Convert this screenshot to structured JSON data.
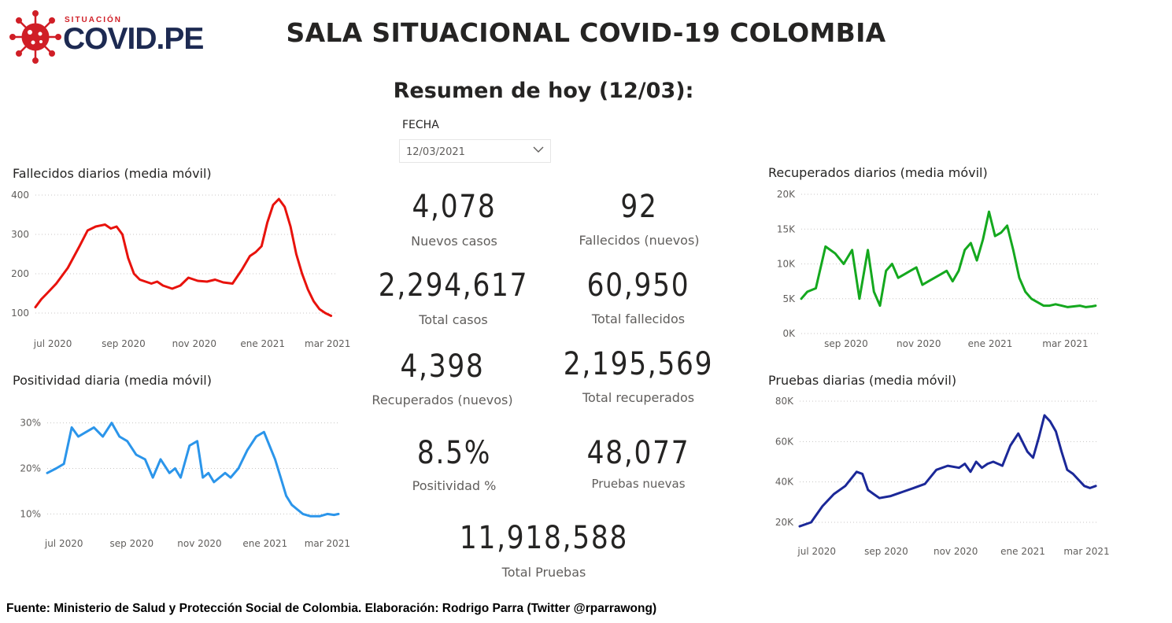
{
  "header": {
    "logo_small": "SITUACIÓN",
    "logo_big": "COVID.PE",
    "title": "SALA SITUACIONAL COVID-19 COLOMBIA",
    "subtitle": "Resumen de hoy (12/03):"
  },
  "filter": {
    "label": "FECHA",
    "value": "12/03/2021"
  },
  "kpis": {
    "nuevos_casos": {
      "value": "4,078",
      "label": "Nuevos casos"
    },
    "fallecidos_nuevos": {
      "value": "92",
      "label": "Fallecidos (nuevos)"
    },
    "total_casos": {
      "value": "2,294,617",
      "label": "Total casos"
    },
    "total_fallecidos": {
      "value": "60,950",
      "label": "Total fallecidos"
    },
    "recuperados_nuevos": {
      "value": "4,398",
      "label": "Recuperados (nuevos)"
    },
    "total_recuperados": {
      "value": "2,195,569",
      "label": "Total recuperados"
    },
    "positividad": {
      "value": "8.5%",
      "label": "Positividad %"
    },
    "pruebas_nuevas": {
      "value": "48,077",
      "label": "Pruebas nuevas"
    },
    "total_pruebas": {
      "value": "11,918,588",
      "label": "Total Pruebas"
    }
  },
  "footer": "Fuente: Ministerio de Salud y Protección Social de Colombia. Elaboración: Rodrigo Parra (Twitter @rparrawong)",
  "colors": {
    "red": "#e8120c",
    "blue": "#2b95ea",
    "green": "#14a81e",
    "navy": "#1b2898",
    "logo_red": "#d01e26",
    "logo_navy": "#1d2a52"
  },
  "chart_data": [
    {
      "id": "fallecidos",
      "type": "line",
      "title": "Fallecidos diarios (media móvil)",
      "color": "#e8120c",
      "ylim": [
        100,
        400
      ],
      "yticks": [
        100,
        200,
        300,
        400
      ],
      "ytick_labels": [
        "100",
        "200",
        "300",
        "400"
      ],
      "xlim": [
        0,
        260
      ],
      "xticks": [
        15,
        76,
        137,
        196,
        252
      ],
      "xtick_labels": [
        "jul 2020",
        "sep 2020",
        "nov 2020",
        "ene 2021",
        "mar 2021"
      ],
      "x": [
        0,
        5,
        10,
        18,
        28,
        38,
        45,
        52,
        60,
        65,
        70,
        75,
        80,
        85,
        90,
        95,
        100,
        105,
        110,
        118,
        125,
        132,
        140,
        148,
        155,
        162,
        170,
        178,
        185,
        190,
        195,
        200,
        205,
        210,
        215,
        220,
        225,
        230,
        235,
        240,
        245,
        250,
        255
      ],
      "y": [
        115,
        135,
        150,
        175,
        215,
        270,
        310,
        320,
        325,
        315,
        320,
        300,
        240,
        200,
        185,
        180,
        175,
        180,
        170,
        162,
        170,
        190,
        182,
        180,
        185,
        178,
        175,
        210,
        245,
        255,
        270,
        330,
        375,
        390,
        370,
        320,
        250,
        200,
        160,
        130,
        110,
        100,
        93
      ]
    },
    {
      "id": "positividad",
      "type": "line",
      "title": "Positividad diaria (media móvil)",
      "color": "#2b95ea",
      "ylim": [
        8,
        32
      ],
      "yticks": [
        10,
        20,
        30
      ],
      "ytick_labels": [
        "10%",
        "20%",
        "30%"
      ],
      "xlim": [
        0,
        262
      ],
      "xticks": [
        15,
        76,
        137,
        196,
        252
      ],
      "xtick_labels": [
        "jul 2020",
        "sep 2020",
        "nov 2020",
        "ene 2021",
        "mar 2021"
      ],
      "x": [
        0,
        8,
        15,
        22,
        28,
        35,
        42,
        50,
        58,
        65,
        72,
        80,
        88,
        95,
        102,
        110,
        115,
        120,
        128,
        135,
        140,
        145,
        150,
        155,
        160,
        165,
        172,
        180,
        188,
        195,
        200,
        205,
        210,
        215,
        220,
        225,
        230,
        237,
        245,
        252,
        258,
        262
      ],
      "y": [
        19,
        20,
        21,
        29,
        27,
        28,
        29,
        27,
        30,
        27,
        26,
        23,
        22,
        18,
        22,
        19,
        20,
        18,
        25,
        26,
        18,
        19,
        17,
        18,
        19,
        18,
        20,
        24,
        27,
        28,
        25,
        22,
        18,
        14,
        12,
        11,
        10,
        9.5,
        9.5,
        10,
        9.8,
        10
      ]
    },
    {
      "id": "recuperados",
      "type": "line",
      "title": "Recuperados diarios (media móvil)",
      "color": "#14a81e",
      "ylim": [
        0,
        20000
      ],
      "yticks": [
        0,
        5000,
        10000,
        15000,
        20000
      ],
      "ytick_labels": [
        "0K",
        "5K",
        "10K",
        "15K",
        "20K"
      ],
      "xlim": [
        0,
        245
      ],
      "xticks": [
        37,
        97,
        156,
        218
      ],
      "xtick_labels": [
        "sep 2020",
        "nov 2020",
        "ene 2021",
        "mar 2021"
      ],
      "x": [
        0,
        5,
        12,
        20,
        28,
        35,
        42,
        48,
        55,
        60,
        65,
        70,
        75,
        80,
        85,
        90,
        95,
        100,
        105,
        110,
        115,
        120,
        125,
        130,
        135,
        140,
        145,
        150,
        155,
        160,
        165,
        170,
        175,
        180,
        185,
        190,
        195,
        200,
        205,
        210,
        215,
        220,
        225,
        230,
        235,
        240,
        243
      ],
      "y": [
        5000,
        6000,
        6500,
        12500,
        11500,
        10000,
        12000,
        5000,
        12000,
        6000,
        4000,
        9000,
        10000,
        8000,
        8500,
        9000,
        9500,
        7000,
        7500,
        8000,
        8500,
        9000,
        7500,
        9000,
        12000,
        13000,
        10500,
        13500,
        17500,
        14000,
        14500,
        15500,
        12000,
        8000,
        6000,
        5000,
        4500,
        4000,
        4000,
        4200,
        4000,
        3800,
        3900,
        4000,
        3800,
        3900,
        4000
      ]
    },
    {
      "id": "pruebas",
      "type": "line",
      "title": "Pruebas diarias (media móvil)",
      "color": "#1b2898",
      "ylim": [
        20000,
        80000
      ],
      "yticks": [
        20000,
        40000,
        60000,
        80000
      ],
      "ytick_labels": [
        "20K",
        "40K",
        "60K",
        "80K"
      ],
      "xlim": [
        0,
        262
      ],
      "xticks": [
        15,
        76,
        137,
        196,
        252
      ],
      "xtick_labels": [
        "jul 2020",
        "sep 2020",
        "nov 2020",
        "ene 2021",
        "mar 2021"
      ],
      "x": [
        0,
        10,
        20,
        30,
        40,
        50,
        55,
        60,
        65,
        70,
        80,
        90,
        100,
        110,
        120,
        130,
        140,
        145,
        150,
        155,
        160,
        165,
        170,
        178,
        185,
        192,
        200,
        205,
        210,
        215,
        220,
        225,
        230,
        235,
        240,
        245,
        250,
        255,
        260
      ],
      "y": [
        18000,
        20000,
        28000,
        34000,
        38000,
        45000,
        44000,
        36000,
        34000,
        32000,
        33000,
        35000,
        37000,
        39000,
        46000,
        48000,
        47000,
        49000,
        45000,
        50000,
        47000,
        49000,
        50000,
        48000,
        58000,
        64000,
        55000,
        52000,
        62000,
        73000,
        70000,
        65000,
        55000,
        46000,
        44000,
        41000,
        38000,
        37000,
        38000
      ]
    }
  ]
}
